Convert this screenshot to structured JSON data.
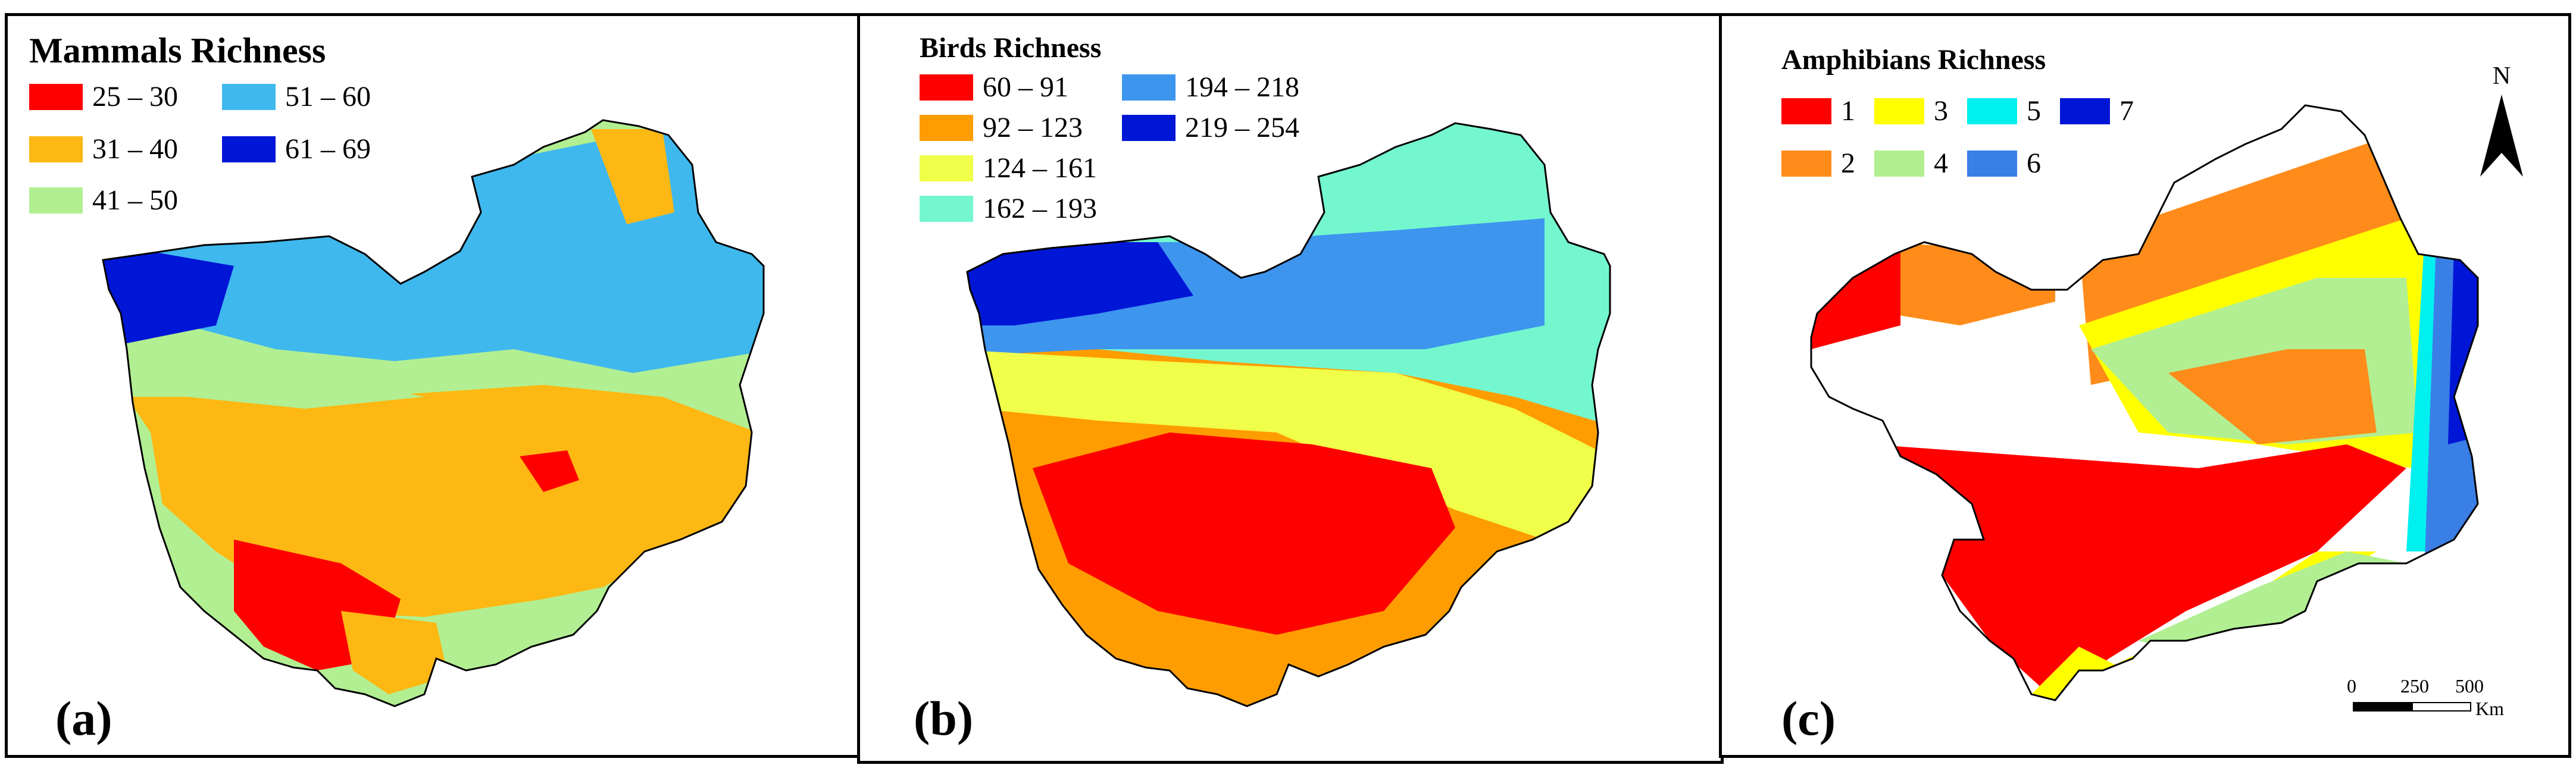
{
  "panels": [
    {
      "id": "a",
      "title": "Mammals Richness",
      "letter": "(a)",
      "legend": [
        {
          "label": "25 – 30",
          "color": "#ff0000"
        },
        {
          "label": "51 – 60",
          "color": "#3fb8ee"
        },
        {
          "label": "31 – 40",
          "color": "#fdb813"
        },
        {
          "label": "61 – 69",
          "color": "#0016d6"
        },
        {
          "label": "41 – 50",
          "color": "#b2ef92"
        }
      ]
    },
    {
      "id": "b",
      "title": "Birds Richness",
      "letter": "(b)",
      "legend": [
        {
          "label": "60 – 91",
          "color": "#ff0000"
        },
        {
          "label": "194 – 218",
          "color": "#3e95ee"
        },
        {
          "label": "92 – 123",
          "color": "#ff9d00"
        },
        {
          "label": "219 – 254",
          "color": "#0016d6"
        },
        {
          "label": "124 – 161",
          "color": "#efff4a"
        },
        {
          "label": "162 – 193",
          "color": "#74f7cf"
        }
      ]
    },
    {
      "id": "c",
      "title": "Amphibians Richness",
      "letter": "(c)",
      "legend": [
        {
          "label": "1",
          "color": "#ff0000"
        },
        {
          "label": "3",
          "color": "#ffff00"
        },
        {
          "label": "5",
          "color": "#00f0f0"
        },
        {
          "label": "7",
          "color": "#0016d6"
        },
        {
          "label": "2",
          "color": "#ff8c1a"
        },
        {
          "label": "4",
          "color": "#b2ef92"
        },
        {
          "label": "6",
          "color": "#3a7fe6"
        }
      ],
      "north_label": "N",
      "scale": {
        "ticks": [
          "0",
          "250",
          "500"
        ],
        "unit": "Km"
      }
    }
  ]
}
